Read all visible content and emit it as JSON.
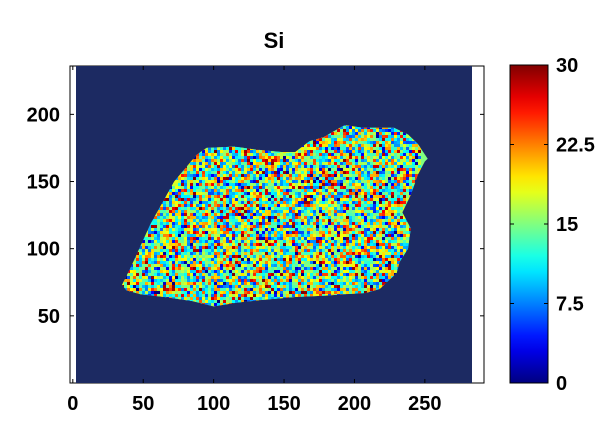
{
  "chart_data": {
    "type": "heatmap",
    "title": "Si",
    "xlabel": "",
    "ylabel": "",
    "xlim": [
      -2,
      292
    ],
    "ylim": [
      0,
      236
    ],
    "x_ticks": [
      "0",
      "50",
      "100",
      "150",
      "200",
      "250"
    ],
    "x_tick_values": [
      0,
      50,
      100,
      150,
      200,
      250
    ],
    "y_ticks": [
      "200",
      "150",
      "100",
      "50"
    ],
    "y_tick_values": [
      200,
      150,
      100,
      50
    ],
    "colorbar": {
      "range": [
        0,
        30
      ],
      "colormap": "jet",
      "ticks": [
        "30",
        "22.5",
        "15",
        "7.5",
        "0"
      ],
      "tick_values": [
        30,
        22.5,
        15,
        7.5,
        0
      ]
    },
    "background_value": 0,
    "region_value_mean": 15,
    "region_outline": [
      [
        35,
        73
      ],
      [
        42,
        88
      ],
      [
        55,
        118
      ],
      [
        72,
        150
      ],
      [
        88,
        170
      ],
      [
        95,
        175
      ],
      [
        115,
        176
      ],
      [
        128,
        174
      ],
      [
        148,
        172
      ],
      [
        158,
        172
      ],
      [
        168,
        180
      ],
      [
        178,
        183
      ],
      [
        193,
        192
      ],
      [
        206,
        190
      ],
      [
        228,
        190
      ],
      [
        238,
        185
      ],
      [
        245,
        178
      ],
      [
        252,
        167
      ],
      [
        250,
        165
      ],
      [
        245,
        155
      ],
      [
        240,
        140
      ],
      [
        234,
        127
      ],
      [
        240,
        115
      ],
      [
        238,
        100
      ],
      [
        232,
        90
      ],
      [
        230,
        82
      ],
      [
        218,
        70
      ],
      [
        208,
        67
      ],
      [
        193,
        66
      ],
      [
        178,
        65
      ],
      [
        158,
        64
      ],
      [
        136,
        62
      ],
      [
        118,
        60
      ],
      [
        100,
        57
      ],
      [
        85,
        61
      ],
      [
        65,
        64
      ],
      [
        48,
        66
      ],
      [
        38,
        69
      ]
    ]
  }
}
